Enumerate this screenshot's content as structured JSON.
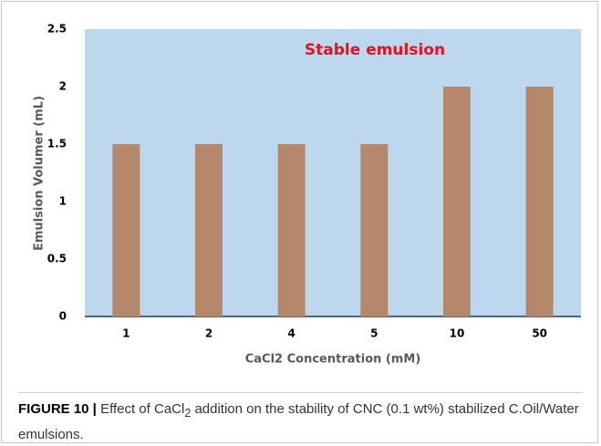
{
  "chart_data": {
    "type": "bar",
    "categories": [
      "1",
      "2",
      "4",
      "5",
      "10",
      "50"
    ],
    "values": [
      1.5,
      1.5,
      1.5,
      1.5,
      2,
      2
    ],
    "color": "#b5886b",
    "ylim": [
      0,
      2.5
    ],
    "yticks": [
      0,
      0.5,
      1,
      1.5,
      2,
      2.5
    ],
    "xlabel": "CaCl2 Concentration (mM)",
    "ylabel": "Emulsion Volumer (mL)",
    "annotation": "Stable emulsion",
    "background": "#bdd7ee"
  },
  "caption": {
    "label": "FIGURE 10 |",
    "text_before": "Effect of CaCl",
    "subscript": "2",
    "text_after": " addition on the stability of CNC (0.1 wt%) stabilized C.Oil/Water emulsions."
  }
}
